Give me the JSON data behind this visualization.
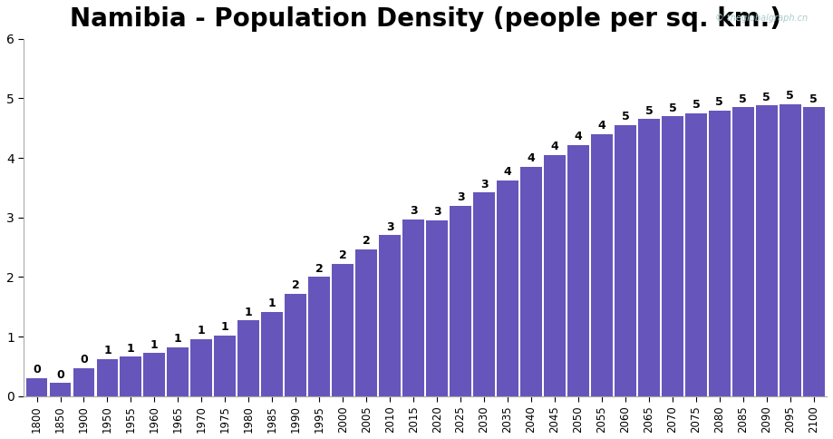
{
  "title": "Namibia - Population Density (people per sq. km.)",
  "categories": [
    1800,
    1850,
    1900,
    1950,
    1955,
    1960,
    1965,
    1970,
    1975,
    1980,
    1985,
    1990,
    1995,
    2000,
    2005,
    2010,
    2015,
    2020,
    2025,
    2030,
    2035,
    2040,
    2045,
    2050,
    2055,
    2060,
    2065,
    2070,
    2075,
    2080,
    2085,
    2090,
    2095,
    2100
  ],
  "values": [
    0.3,
    0.22,
    0.47,
    0.62,
    0.66,
    0.72,
    0.82,
    0.96,
    1.02,
    1.27,
    1.42,
    1.72,
    2.0,
    2.22,
    2.47,
    2.7,
    2.97,
    2.95,
    3.2,
    3.42,
    3.62,
    3.85,
    4.05,
    4.22,
    4.4,
    4.55,
    4.65,
    4.7,
    4.75,
    4.8,
    4.85,
    4.88,
    4.9,
    4.85
  ],
  "labels": [
    0,
    0,
    0,
    1,
    1,
    1,
    1,
    1,
    1,
    1,
    1,
    2,
    2,
    2,
    2,
    3,
    3,
    3,
    3,
    3,
    4,
    4,
    4,
    4,
    4,
    5,
    5,
    5,
    5,
    5,
    5,
    5,
    5,
    5
  ],
  "bar_color": "#6655bb",
  "background_color": "#ffffff",
  "ylim": [
    0,
    6
  ],
  "yticks": [
    0,
    1,
    2,
    3,
    4,
    5,
    6
  ],
  "title_fontsize": 20,
  "label_fontsize": 9,
  "watermark": "© theglobalgraph.cn"
}
